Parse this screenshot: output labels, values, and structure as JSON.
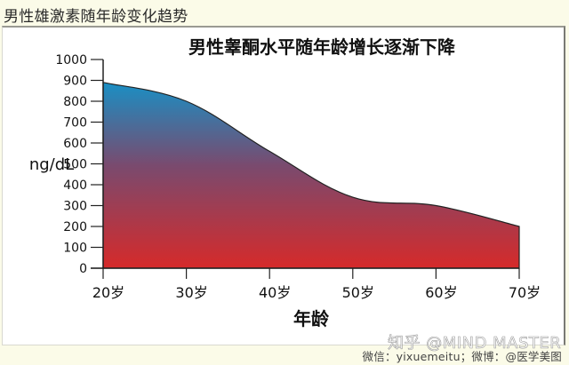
{
  "page": {
    "heading": "男性雄激素随年龄变化趋势",
    "credit": "微信：yixuemeitu；微博：@医学美图",
    "watermark": "知乎 @MIND MASTER"
  },
  "colors": {
    "fill_top": "#1a8fc4",
    "fill_mid": "#7a4a6e",
    "fill_bottom": "#d62a2a",
    "outline": "#222222"
  },
  "chart_data": {
    "type": "area",
    "title": "男性睾酮水平随年龄增长逐渐下降",
    "xlabel": "年龄",
    "ylabel": "ng/dL",
    "categories": [
      "20岁",
      "30岁",
      "40岁",
      "50岁",
      "60岁",
      "70岁"
    ],
    "x": [
      20,
      30,
      40,
      50,
      60,
      70
    ],
    "series": [
      {
        "name": "睾酮水平",
        "values": [
          890,
          800,
          560,
          340,
          300,
          200
        ]
      }
    ],
    "ylim": [
      0,
      1000
    ],
    "yticks": [
      0,
      100,
      200,
      300,
      400,
      500,
      600,
      700,
      800,
      900,
      1000
    ],
    "xlim": [
      20,
      70
    ],
    "grid": false,
    "legend": "none"
  }
}
